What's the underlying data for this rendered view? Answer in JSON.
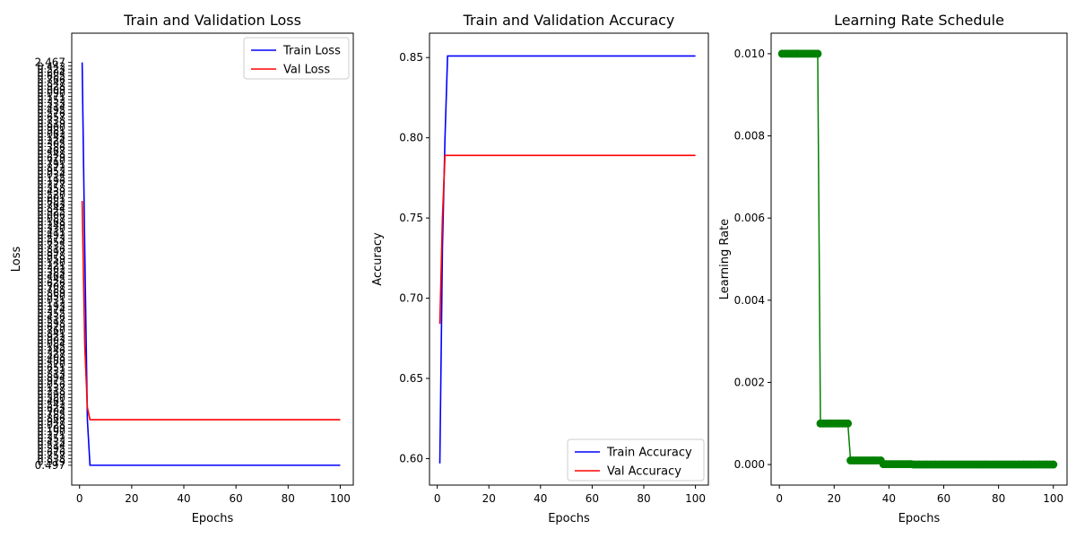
{
  "chart_data": [
    {
      "type": "line",
      "title": "Train and Validation Loss",
      "xlabel": "Epochs",
      "ylabel": "Loss",
      "xlim": [
        -3,
        105
      ],
      "xticks": [
        0,
        20,
        40,
        60,
        80,
        100
      ],
      "legend_location": "upper right",
      "y_tick_labels_visible": [
        "2.467",
        "0.497"
      ],
      "series": [
        {
          "name": "Train Loss",
          "color": "#0000ff",
          "x": [
            1,
            2,
            3,
            4,
            100
          ],
          "y": [
            2.467,
            1.55,
            0.72,
            0.497,
            0.497
          ]
        },
        {
          "name": "Val Loss",
          "color": "#ff0000",
          "x": [
            1,
            2,
            3,
            4,
            100
          ],
          "y": [
            1.79,
            1.08,
            0.78,
            0.72,
            0.72
          ]
        }
      ]
    },
    {
      "type": "line",
      "title": "Train and Validation Accuracy",
      "xlabel": "Epochs",
      "ylabel": "Accuracy",
      "xlim": [
        -3,
        105
      ],
      "ylim": [
        0.5835,
        0.8652
      ],
      "xticks": [
        0,
        20,
        40,
        60,
        80,
        100
      ],
      "yticks": [
        0.6,
        0.65,
        0.7,
        0.75,
        0.8,
        0.85
      ],
      "ytick_labels": [
        "0.60",
        "0.65",
        "0.70",
        "0.75",
        "0.80",
        "0.85"
      ],
      "legend_location": "lower right",
      "series": [
        {
          "name": "Train Accuracy",
          "color": "#0000ff",
          "x": [
            1,
            2,
            3,
            4,
            100
          ],
          "y": [
            0.597,
            0.73,
            0.8,
            0.851,
            0.851
          ]
        },
        {
          "name": "Val Accuracy",
          "color": "#ff0000",
          "x": [
            1,
            2,
            3,
            100
          ],
          "y": [
            0.684,
            0.75,
            0.789,
            0.789
          ]
        }
      ]
    },
    {
      "type": "line",
      "title": "Learning Rate Schedule",
      "xlabel": "Epochs",
      "ylabel": "Learning Rate",
      "xlim": [
        -3,
        105
      ],
      "ylim": [
        -0.0005,
        0.0105
      ],
      "xticks": [
        0,
        20,
        40,
        60,
        80,
        100
      ],
      "yticks": [
        0.0,
        0.002,
        0.004,
        0.006,
        0.008,
        0.01
      ],
      "ytick_labels": [
        "0.000",
        "0.002",
        "0.004",
        "0.006",
        "0.008",
        "0.010"
      ],
      "marker": "circle",
      "series": [
        {
          "color": "#008000",
          "segments": [
            {
              "from": 1,
              "to": 14,
              "value": 0.01
            },
            {
              "from": 15,
              "to": 25,
              "value": 0.001
            },
            {
              "from": 26,
              "to": 37,
              "value": 0.0001
            },
            {
              "from": 38,
              "to": 48,
              "value": 1e-05
            },
            {
              "from": 49,
              "to": 100,
              "value": 1e-06
            }
          ]
        }
      ]
    }
  ]
}
